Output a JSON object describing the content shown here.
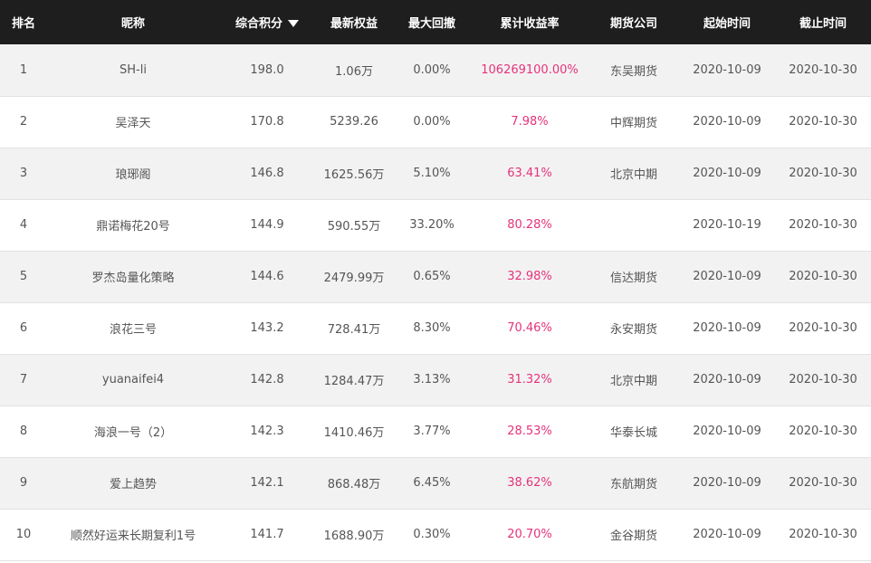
{
  "colors": {
    "header_bg": "#1e1e1e",
    "header_text": "#ffffff",
    "row_alt_bg": "#f2f2f2",
    "text": "#555555",
    "return_highlight": "#e6337a"
  },
  "table": {
    "sort_icon": "caret-down-icon",
    "headers": {
      "rank": "排名",
      "nickname": "昵称",
      "score": "综合积分",
      "equity": "最新权益",
      "drawdown": "最大回撤",
      "return": "累计收益率",
      "company": "期货公司",
      "start": "起始时间",
      "end": "截止时间"
    },
    "rows": [
      {
        "rank": "1",
        "nickname": "SH-li",
        "score": "198.0",
        "equity": "1.06万",
        "drawdown": "0.00%",
        "return": "106269100.00%",
        "company": "东吴期货",
        "start": "2020-10-09",
        "end": "2020-10-30"
      },
      {
        "rank": "2",
        "nickname": "吴泽天",
        "score": "170.8",
        "equity": "5239.26",
        "drawdown": "0.00%",
        "return": "7.98%",
        "company": "中辉期货",
        "start": "2020-10-09",
        "end": "2020-10-30"
      },
      {
        "rank": "3",
        "nickname": "琅琊阁",
        "score": "146.8",
        "equity": "1625.56万",
        "drawdown": "5.10%",
        "return": "63.41%",
        "company": "北京中期",
        "start": "2020-10-09",
        "end": "2020-10-30"
      },
      {
        "rank": "4",
        "nickname": "鼎诺梅花20号",
        "score": "144.9",
        "equity": "590.55万",
        "drawdown": "33.20%",
        "return": "80.28%",
        "company": "",
        "start": "2020-10-19",
        "end": "2020-10-30"
      },
      {
        "rank": "5",
        "nickname": "罗杰岛量化策略",
        "score": "144.6",
        "equity": "2479.99万",
        "drawdown": "0.65%",
        "return": "32.98%",
        "company": "信达期货",
        "start": "2020-10-09",
        "end": "2020-10-30"
      },
      {
        "rank": "6",
        "nickname": "浪花三号",
        "score": "143.2",
        "equity": "728.41万",
        "drawdown": "8.30%",
        "return": "70.46%",
        "company": "永安期货",
        "start": "2020-10-09",
        "end": "2020-10-30"
      },
      {
        "rank": "7",
        "nickname": "yuanaifei4",
        "score": "142.8",
        "equity": "1284.47万",
        "drawdown": "3.13%",
        "return": "31.32%",
        "company": "北京中期",
        "start": "2020-10-09",
        "end": "2020-10-30"
      },
      {
        "rank": "8",
        "nickname": "海浪一号（2）",
        "score": "142.3",
        "equity": "1410.46万",
        "drawdown": "3.77%",
        "return": "28.53%",
        "company": "华泰长城",
        "start": "2020-10-09",
        "end": "2020-10-30"
      },
      {
        "rank": "9",
        "nickname": "爱上趋势",
        "score": "142.1",
        "equity": "868.48万",
        "drawdown": "6.45%",
        "return": "38.62%",
        "company": "东航期货",
        "start": "2020-10-09",
        "end": "2020-10-30"
      },
      {
        "rank": "10",
        "nickname": "顺然好运来长期复利1号",
        "score": "141.7",
        "equity": "1688.90万",
        "drawdown": "0.30%",
        "return": "20.70%",
        "company": "金谷期货",
        "start": "2020-10-09",
        "end": "2020-10-30"
      }
    ]
  }
}
